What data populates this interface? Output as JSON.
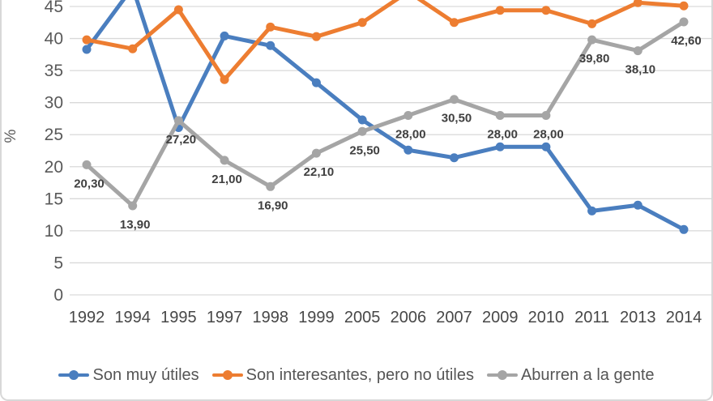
{
  "chart_data": {
    "type": "line",
    "title": "",
    "xlabel": "",
    "ylabel": "%",
    "grid": true,
    "legend_position": "bottom",
    "ylim": [
      0,
      46
    ],
    "y_ticks": [
      0,
      5,
      10,
      15,
      20,
      25,
      30,
      35,
      40,
      45
    ],
    "categories": [
      "1992",
      "1994",
      "1995",
      "1997",
      "1998",
      "1999",
      "2005",
      "2006",
      "2007",
      "2009",
      "2010",
      "2011",
      "2013",
      "2014"
    ],
    "series": [
      {
        "name": "Son muy útiles",
        "color": "#4A7EBF",
        "values": [
          38.3,
          48.0,
          26.1,
          40.4,
          38.9,
          33.1,
          27.3,
          22.6,
          21.4,
          23.1,
          23.1,
          13.1,
          14.0,
          10.2
        ],
        "data_labels": null
      },
      {
        "name": "Son interesantes, pero no útiles",
        "color": "#ED7D31",
        "values": [
          39.8,
          38.4,
          44.5,
          33.6,
          41.8,
          40.3,
          42.5,
          47.3,
          42.5,
          44.4,
          44.4,
          42.3,
          45.6,
          45.1
        ],
        "data_labels": null
      },
      {
        "name": "Aburren a la gente",
        "color": "#A5A5A5",
        "values": [
          20.3,
          13.9,
          27.2,
          21.0,
          16.9,
          22.1,
          25.5,
          28.0,
          30.5,
          28.0,
          28.0,
          39.8,
          38.1,
          42.6
        ],
        "data_labels": [
          "20,30",
          "13,90",
          "27,20",
          "21,00",
          "16,90",
          "22,10",
          "25,50",
          "28,00",
          "30,50",
          "28,00",
          "28,00",
          "39,80",
          "38,10",
          "42,60"
        ]
      }
    ]
  },
  "colors": {
    "gridline": "#D9D9D9",
    "y_tick_text": "#595959",
    "x_tick_text": "#474747",
    "data_label_text": "#404040",
    "legend_text": "#555555",
    "frame_border": "#D8D8D8"
  }
}
